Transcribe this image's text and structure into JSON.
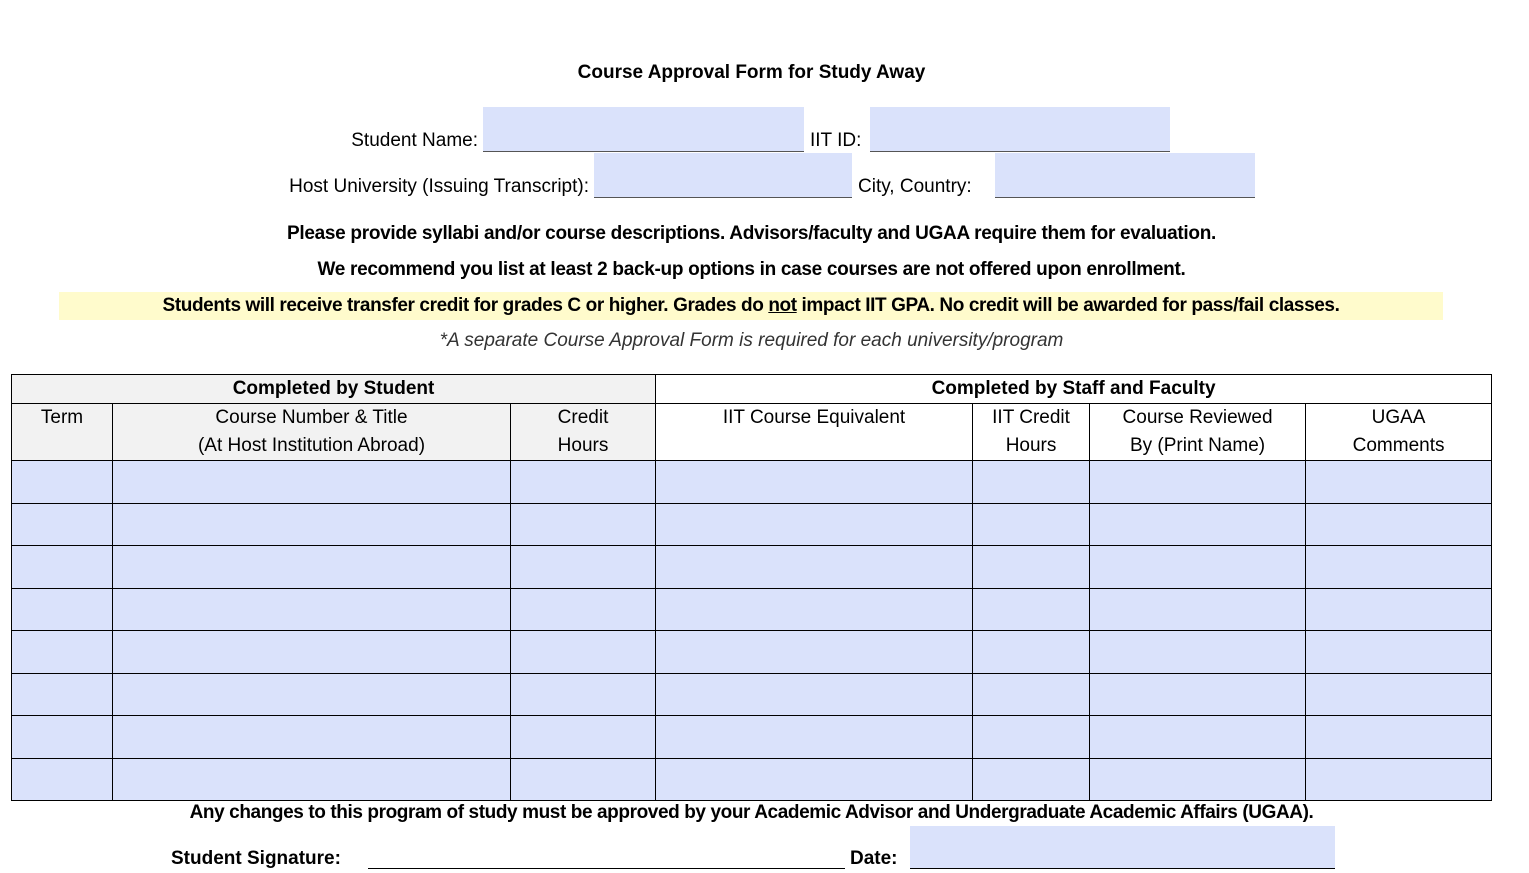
{
  "title": "Course Approval Form for Study Away",
  "fields": {
    "student_name_label": "Student Name:",
    "iit_id_label": "IIT ID:",
    "host_university_label": "Host University (Issuing Transcript):",
    "city_country_label": "City, Country:"
  },
  "notes": {
    "line1": "Please provide syllabi and/or course descriptions. Advisors/faculty and UGAA require them for evaluation.",
    "line2": "We recommend you list at least 2 back-up options in case courses are not offered upon enrollment.",
    "line3_a": "Students will receive transfer credit for grades C or higher. Grades do ",
    "line3_b": "not",
    "line3_c": " impact IIT GPA. No credit will be awarded for pass/fail classes.",
    "line4": "*A separate Course Approval Form is required for each university/program"
  },
  "table": {
    "group_student": "Completed by Student",
    "group_staff": "Completed by Staff and Faculty",
    "headers": [
      [
        "Term",
        ""
      ],
      [
        "Course Number & Title",
        "(At Host Institution Abroad)"
      ],
      [
        "Credit",
        "Hours"
      ],
      [
        "IIT Course Equivalent",
        ""
      ],
      [
        "IIT Credit",
        "Hours"
      ],
      [
        "Course Reviewed",
        "By (Print Name)"
      ],
      [
        "UGAA",
        "Comments"
      ]
    ],
    "row_count": 8
  },
  "footer": {
    "changes_note": "Any changes to this program of study must be approved by your Academic Advisor and Undergraduate Academic Affairs (UGAA).",
    "signature_label": "Student Signature:",
    "date_label": "Date:"
  },
  "colors": {
    "field_fill": "#dae2fb",
    "header_fill": "#f2f2f2",
    "highlight": "#fffbcc"
  }
}
